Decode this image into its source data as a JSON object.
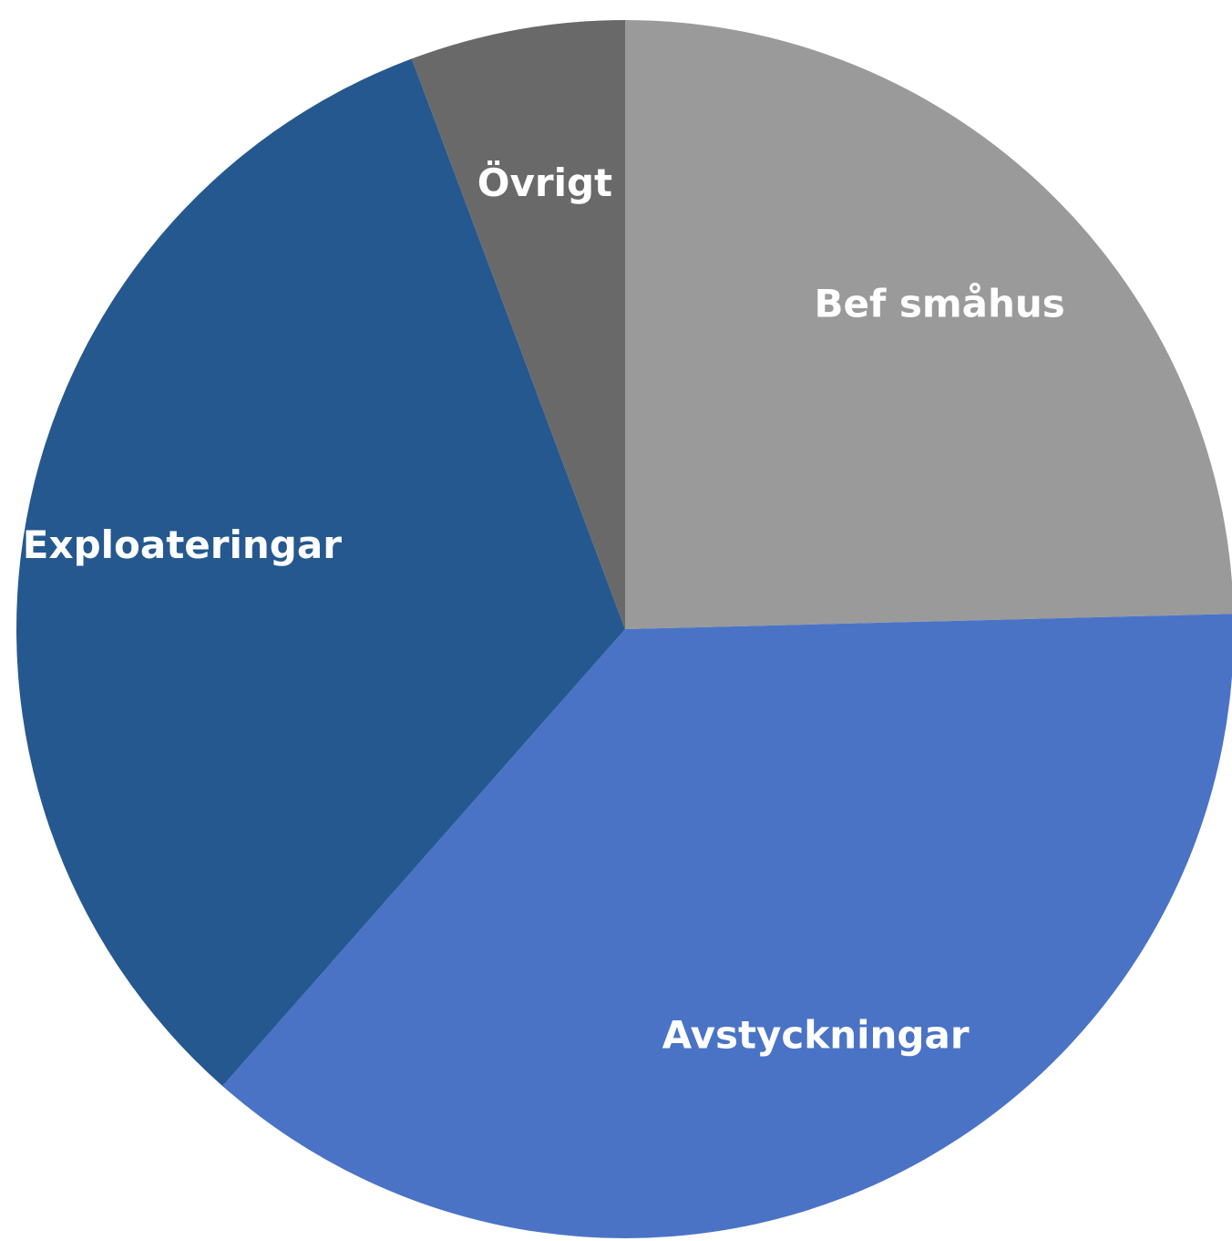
{
  "chart_data": {
    "type": "pie",
    "categories": [
      "Bef småhus",
      "Avstyckningar",
      "Exploateringar",
      "Övrigt"
    ],
    "values": [
      24.6,
      36.9,
      32.8,
      5.7
    ],
    "colors": [
      "#9a9a9a",
      "#4a73c6",
      "#25588f",
      "#696969"
    ],
    "start_angle": 0,
    "direction": "clockwise"
  }
}
